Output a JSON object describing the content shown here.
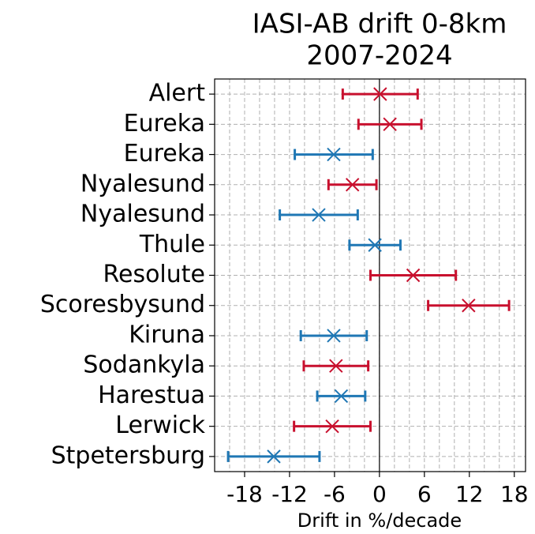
{
  "chart_data": {
    "type": "errorbar-h",
    "title_lines": [
      "IASI-AB drift 0-8km",
      "2007-2024"
    ],
    "x_label": "Drift in %/decade",
    "categories": [
      "Alert",
      "Eureka",
      "Eureka",
      "Nyalesund",
      "Nyalesund",
      "Thule",
      "Resolute",
      "Scoresbysund",
      "Kiruna",
      "Sodankyla",
      "Harestua",
      "Lerwick",
      "Stpetersburg"
    ],
    "values": [
      0.1,
      1.4,
      -6.1,
      -3.6,
      -8.1,
      -0.6,
      4.5,
      11.9,
      -6.1,
      -5.8,
      -5.1,
      -6.3,
      -14.1
    ],
    "errors": [
      5.0,
      4.2,
      5.2,
      3.2,
      5.2,
      3.4,
      5.7,
      5.4,
      4.4,
      4.3,
      3.2,
      5.1,
      6.1
    ],
    "colors": [
      "#c8102e",
      "#c8102e",
      "#1f77b4",
      "#c8102e",
      "#1f77b4",
      "#1f77b4",
      "#c8102e",
      "#c8102e",
      "#1f77b4",
      "#c8102e",
      "#1f77b4",
      "#c8102e",
      "#1f77b4"
    ],
    "xlim": [
      -22,
      19.5
    ],
    "xticks": [
      -18,
      -12,
      -6,
      0,
      6,
      12,
      18
    ],
    "x_minor_grid": [
      -20,
      -16,
      -14,
      -10,
      -8,
      -4,
      -2,
      2,
      4,
      8,
      10,
      14,
      16
    ],
    "vline": 0,
    "grid": true
  }
}
